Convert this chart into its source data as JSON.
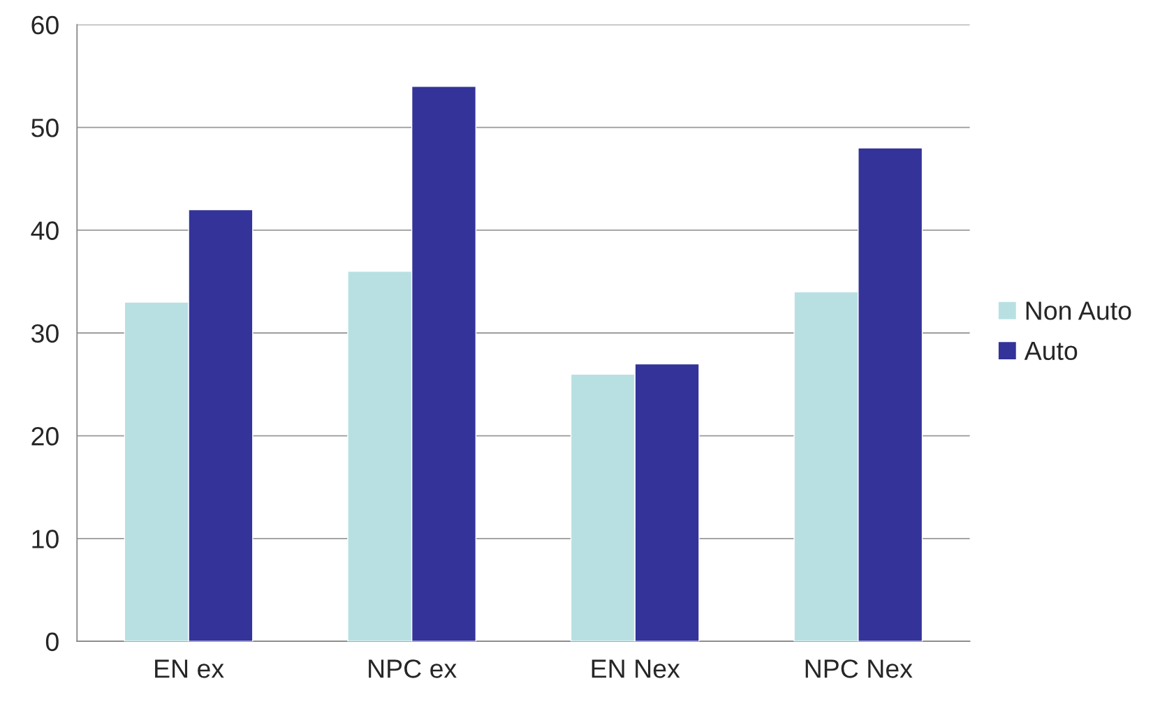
{
  "chart_data": {
    "type": "bar",
    "categories": [
      "EN ex",
      "NPC ex",
      "EN Nex",
      "NPC Nex"
    ],
    "series": [
      {
        "name": "Non Auto",
        "color": "#b8e0e3",
        "values": [
          33,
          36,
          26,
          34
        ]
      },
      {
        "name": "Auto",
        "color": "#333399",
        "values": [
          42,
          54,
          27,
          48
        ]
      }
    ],
    "ylim": [
      0,
      60
    ],
    "yticks": [
      0,
      10,
      20,
      30,
      40,
      50,
      60
    ],
    "grid": "y",
    "legend": "right"
  }
}
